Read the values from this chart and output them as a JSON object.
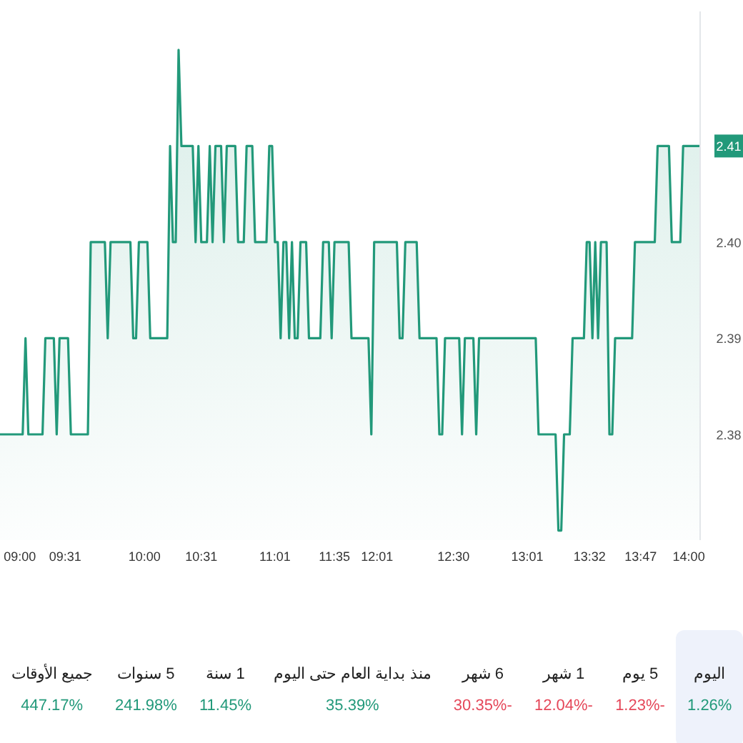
{
  "chart_data": [
    {
      "type": "area",
      "categories": [
        null,
        null,
        null,
        null,
        null,
        null,
        null,
        "09:00",
        null,
        null,
        null,
        null,
        null,
        null,
        null,
        null,
        null,
        null,
        null,
        null,
        null,
        null,
        null,
        "09:31",
        null,
        null,
        null,
        null,
        null,
        null,
        null,
        null,
        null,
        null,
        null,
        null,
        null,
        null,
        null,
        null,
        null,
        null,
        null,
        null,
        null,
        null,
        null,
        null,
        null,
        null,
        null,
        "10:00",
        null,
        null,
        null,
        null,
        null,
        null,
        null,
        null,
        null,
        null,
        null,
        null,
        null,
        null,
        null,
        null,
        null,
        null,
        null,
        "10:31",
        null,
        null,
        null,
        null,
        null,
        null,
        null,
        null,
        null,
        null,
        null,
        null,
        null,
        null,
        null,
        null,
        null,
        null,
        null,
        null,
        null,
        null,
        null,
        null,
        null,
        "11:01",
        null,
        null,
        null,
        null,
        null,
        null,
        null,
        null,
        null,
        null,
        null,
        null,
        null,
        null,
        null,
        null,
        null,
        null,
        null,
        null,
        "11:35",
        null,
        null,
        null,
        null,
        null,
        null,
        null,
        null,
        null,
        null,
        null,
        null,
        null,
        null,
        "12:01",
        null,
        null,
        null,
        null,
        null,
        null,
        null,
        null,
        null,
        null,
        null,
        null,
        null,
        null,
        null,
        null,
        null,
        null,
        null,
        null,
        null,
        null,
        null,
        null,
        null,
        null,
        "12:30",
        null,
        null,
        null,
        null,
        null,
        null,
        null,
        null,
        null,
        null,
        null,
        null,
        null,
        null,
        null,
        null,
        null,
        null,
        null,
        null,
        null,
        null,
        null,
        null,
        null,
        "13:01",
        null,
        null,
        null,
        null,
        null,
        null,
        null,
        null,
        null,
        null,
        null,
        null,
        null,
        null,
        null,
        null,
        null,
        null,
        null,
        null,
        null,
        "13:32",
        null,
        null,
        null,
        null,
        null,
        null,
        null,
        null,
        null,
        null,
        null,
        null,
        null,
        null,
        null,
        null,
        null,
        "13:47",
        null,
        null,
        null,
        null,
        null,
        null,
        null,
        null,
        null,
        null,
        null,
        null,
        null,
        null,
        null,
        null,
        "14:00",
        null,
        null,
        null,
        null
      ],
      "series": [
        {
          "color": "#22997a",
          "values": [
            2.38,
            2.38,
            2.38,
            2.38,
            2.38,
            2.38,
            2.38,
            2.38,
            2.38,
            2.39,
            2.38,
            2.38,
            2.38,
            2.38,
            2.38,
            2.38,
            2.39,
            2.39,
            2.39,
            2.39,
            2.38,
            2.39,
            2.39,
            2.39,
            2.39,
            2.38,
            2.38,
            2.38,
            2.38,
            2.38,
            2.38,
            2.38,
            2.4,
            2.4,
            2.4,
            2.4,
            2.4,
            2.4,
            2.39,
            2.4,
            2.4,
            2.4,
            2.4,
            2.4,
            2.4,
            2.4,
            2.4,
            2.39,
            2.39,
            2.4,
            2.4,
            2.4,
            2.4,
            2.39,
            2.39,
            2.39,
            2.39,
            2.39,
            2.39,
            2.39,
            2.41,
            2.4,
            2.4,
            2.42,
            2.41,
            2.41,
            2.41,
            2.41,
            2.41,
            2.4,
            2.41,
            2.4,
            2.4,
            2.4,
            2.41,
            2.4,
            2.41,
            2.41,
            2.41,
            2.4,
            2.41,
            2.41,
            2.41,
            2.41,
            2.4,
            2.4,
            2.4,
            2.41,
            2.41,
            2.41,
            2.4,
            2.4,
            2.4,
            2.4,
            2.4,
            2.41,
            2.41,
            2.4,
            2.4,
            2.39,
            2.4,
            2.4,
            2.39,
            2.4,
            2.39,
            2.39,
            2.4,
            2.4,
            2.4,
            2.39,
            2.39,
            2.39,
            2.39,
            2.39,
            2.4,
            2.4,
            2.4,
            2.39,
            2.4,
            2.4,
            2.4,
            2.4,
            2.4,
            2.4,
            2.39,
            2.39,
            2.39,
            2.39,
            2.39,
            2.39,
            2.39,
            2.38,
            2.4,
            2.4,
            2.4,
            2.4,
            2.4,
            2.4,
            2.4,
            2.4,
            2.4,
            2.39,
            2.39,
            2.4,
            2.4,
            2.4,
            2.4,
            2.4,
            2.39,
            2.39,
            2.39,
            2.39,
            2.39,
            2.39,
            2.39,
            2.38,
            2.38,
            2.39,
            2.39,
            2.39,
            2.39,
            2.39,
            2.39,
            2.38,
            2.39,
            2.39,
            2.39,
            2.39,
            2.38,
            2.39,
            2.39,
            2.39,
            2.39,
            2.39,
            2.39,
            2.39,
            2.39,
            2.39,
            2.39,
            2.39,
            2.39,
            2.39,
            2.39,
            2.39,
            2.39,
            2.39,
            2.39,
            2.39,
            2.39,
            2.39,
            2.38,
            2.38,
            2.38,
            2.38,
            2.38,
            2.38,
            2.38,
            2.37,
            2.37,
            2.38,
            2.38,
            2.38,
            2.39,
            2.39,
            2.39,
            2.39,
            2.39,
            2.4,
            2.4,
            2.39,
            2.4,
            2.39,
            2.4,
            2.4,
            2.4,
            2.38,
            2.38,
            2.39,
            2.39,
            2.39,
            2.39,
            2.39,
            2.39,
            2.39,
            2.4,
            2.4,
            2.4,
            2.4,
            2.4,
            2.4,
            2.4,
            2.4,
            2.41,
            2.41,
            2.41,
            2.41,
            2.41,
            2.4,
            2.4,
            2.4,
            2.4,
            2.41,
            2.41,
            2.41,
            2.41,
            2.41,
            2.41,
            2.41
          ]
        }
      ],
      "ylim": [
        2.369,
        2.424
      ],
      "yticks": [
        {
          "value": 2.38,
          "label": "2.38"
        },
        {
          "value": 2.39,
          "label": "2.39"
        },
        {
          "value": 2.4,
          "label": "2.40"
        },
        {
          "value": 2.41,
          "label": "2.41"
        }
      ],
      "grid": false,
      "legend": false
    },
    {
      "type": "other",
      "categories": [
        "جميع الأوقات",
        "5 سنوات",
        "1 سنة",
        "منذ بداية العام حتى اليوم",
        "6 شهر",
        "1 شهر",
        "5 يوم",
        "اليوم"
      ],
      "value_labels": [
        "447.17%",
        "241.98%",
        "11.45%",
        "35.39%",
        "30.35%-",
        "12.04%-",
        "1.23%-",
        "1.26%"
      ],
      "colors": [
        "#22997a",
        "#22997a",
        "#22997a",
        "#22997a",
        "#e5485a",
        "#e5485a",
        "#e5485a",
        "#22997a"
      ]
    }
  ]
}
